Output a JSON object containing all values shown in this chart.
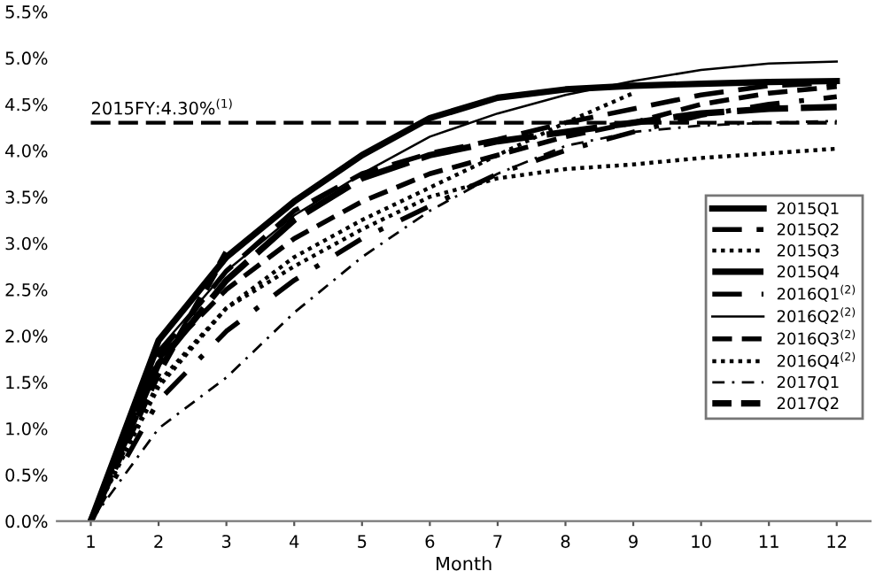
{
  "chart_data": {
    "type": "line",
    "xlabel": "Month",
    "x": [
      1,
      2,
      3,
      4,
      5,
      6,
      7,
      8,
      9,
      10,
      11,
      12
    ],
    "xlim": [
      0.5,
      12.5
    ],
    "xticks": [
      1,
      2,
      3,
      4,
      5,
      6,
      7,
      8,
      9,
      10,
      11,
      12
    ],
    "ylim": [
      0,
      5.5
    ],
    "yticks": [
      {
        "value": 0,
        "label": "0.0%"
      },
      {
        "value": 0.5,
        "label": "0.5%"
      },
      {
        "value": 1,
        "label": "1.0%"
      },
      {
        "value": 1.5,
        "label": "1.5%"
      },
      {
        "value": 2,
        "label": "2.0%"
      },
      {
        "value": 2.5,
        "label": "2.5%"
      },
      {
        "value": 3,
        "label": "3.0%"
      },
      {
        "value": 3.5,
        "label": "3.5%"
      },
      {
        "value": 4,
        "label": "4.0%"
      },
      {
        "value": 4.5,
        "label": "4.5%"
      },
      {
        "value": 5,
        "label": "5.0%"
      },
      {
        "value": 5.5,
        "label": "5.5%"
      }
    ],
    "grid": false,
    "legend": "right",
    "marker": "none",
    "ref_lines": [
      {
        "axis": "y",
        "value": 4.3,
        "label": "2015FY:4.30%$^{(1)}$",
        "color": "#000000",
        "line_style": "dashed"
      }
    ],
    "series": [
      {
        "name": "2015Q1",
        "color": "#000000",
        "line_style": "solid",
        "values": [
          0,
          1.95,
          2.85,
          3.45,
          3.95,
          4.35,
          4.57,
          4.66,
          4.7,
          4.72,
          4.74,
          4.75
        ]
      },
      {
        "name": "2015Q2",
        "color": "#000000",
        "line_style": "dashed",
        "values": [
          0,
          1.8,
          2.7,
          3.35,
          3.75,
          3.97,
          4.12,
          4.3,
          4.45,
          4.6,
          4.7,
          4.73
        ]
      },
      {
        "name": "2015Q3",
        "color": "#000000",
        "line_style": "dotted",
        "values": [
          0,
          1.5,
          2.3,
          2.75,
          3.15,
          3.5,
          3.7,
          3.8,
          3.85,
          3.92,
          3.97,
          4.02
        ]
      },
      {
        "name": "2015Q4",
        "color": "#000000",
        "line_style": "dashed",
        "values": [
          0,
          1.7,
          2.6,
          3.25,
          3.7,
          3.95,
          4.1,
          4.2,
          4.3,
          4.4,
          4.45,
          4.47
        ]
      },
      {
        "name": "2016Q1$^{(2)}$",
        "color": "#000000",
        "line_style": "dashdot",
        "values": [
          0,
          1.3,
          2.05,
          2.6,
          3.05,
          3.4,
          3.75,
          4.0,
          4.2,
          4.38,
          4.5,
          4.58
        ]
      },
      {
        "name": "2016Q2$^{(2)}$",
        "color": "#000000",
        "line_style": "solid",
        "values": [
          0,
          1.85,
          2.7,
          3.3,
          3.75,
          4.15,
          4.4,
          4.6,
          4.75,
          4.87,
          4.94,
          4.96
        ]
      },
      {
        "name": "2016Q3$^{(2)}$",
        "color": "#000000",
        "line_style": "dashed",
        "values": [
          0,
          1.75,
          2.5,
          3.05,
          3.45,
          3.75,
          3.95,
          4.15,
          4.3,
          4.5,
          4.62,
          4.69
        ]
      },
      {
        "name": "2016Q4$^{(2)}$",
        "color": "#000000",
        "line_style": "dotted",
        "values": [
          0,
          1.45,
          2.3,
          2.85,
          3.25,
          3.6,
          3.95,
          4.3,
          4.62,
          null,
          null,
          null
        ]
      },
      {
        "name": "2017Q1",
        "color": "#000000",
        "line_style": "dashdot",
        "values": [
          0,
          1.0,
          1.55,
          2.25,
          2.85,
          3.35,
          3.75,
          4.05,
          4.2,
          4.27,
          4.3,
          4.32
        ]
      },
      {
        "name": "2017Q2",
        "color": "#000000",
        "line_style": "dashed",
        "values": [
          0,
          1.6,
          2.9,
          null,
          null,
          null,
          null,
          null,
          null,
          null,
          null,
          null
        ]
      }
    ]
  }
}
